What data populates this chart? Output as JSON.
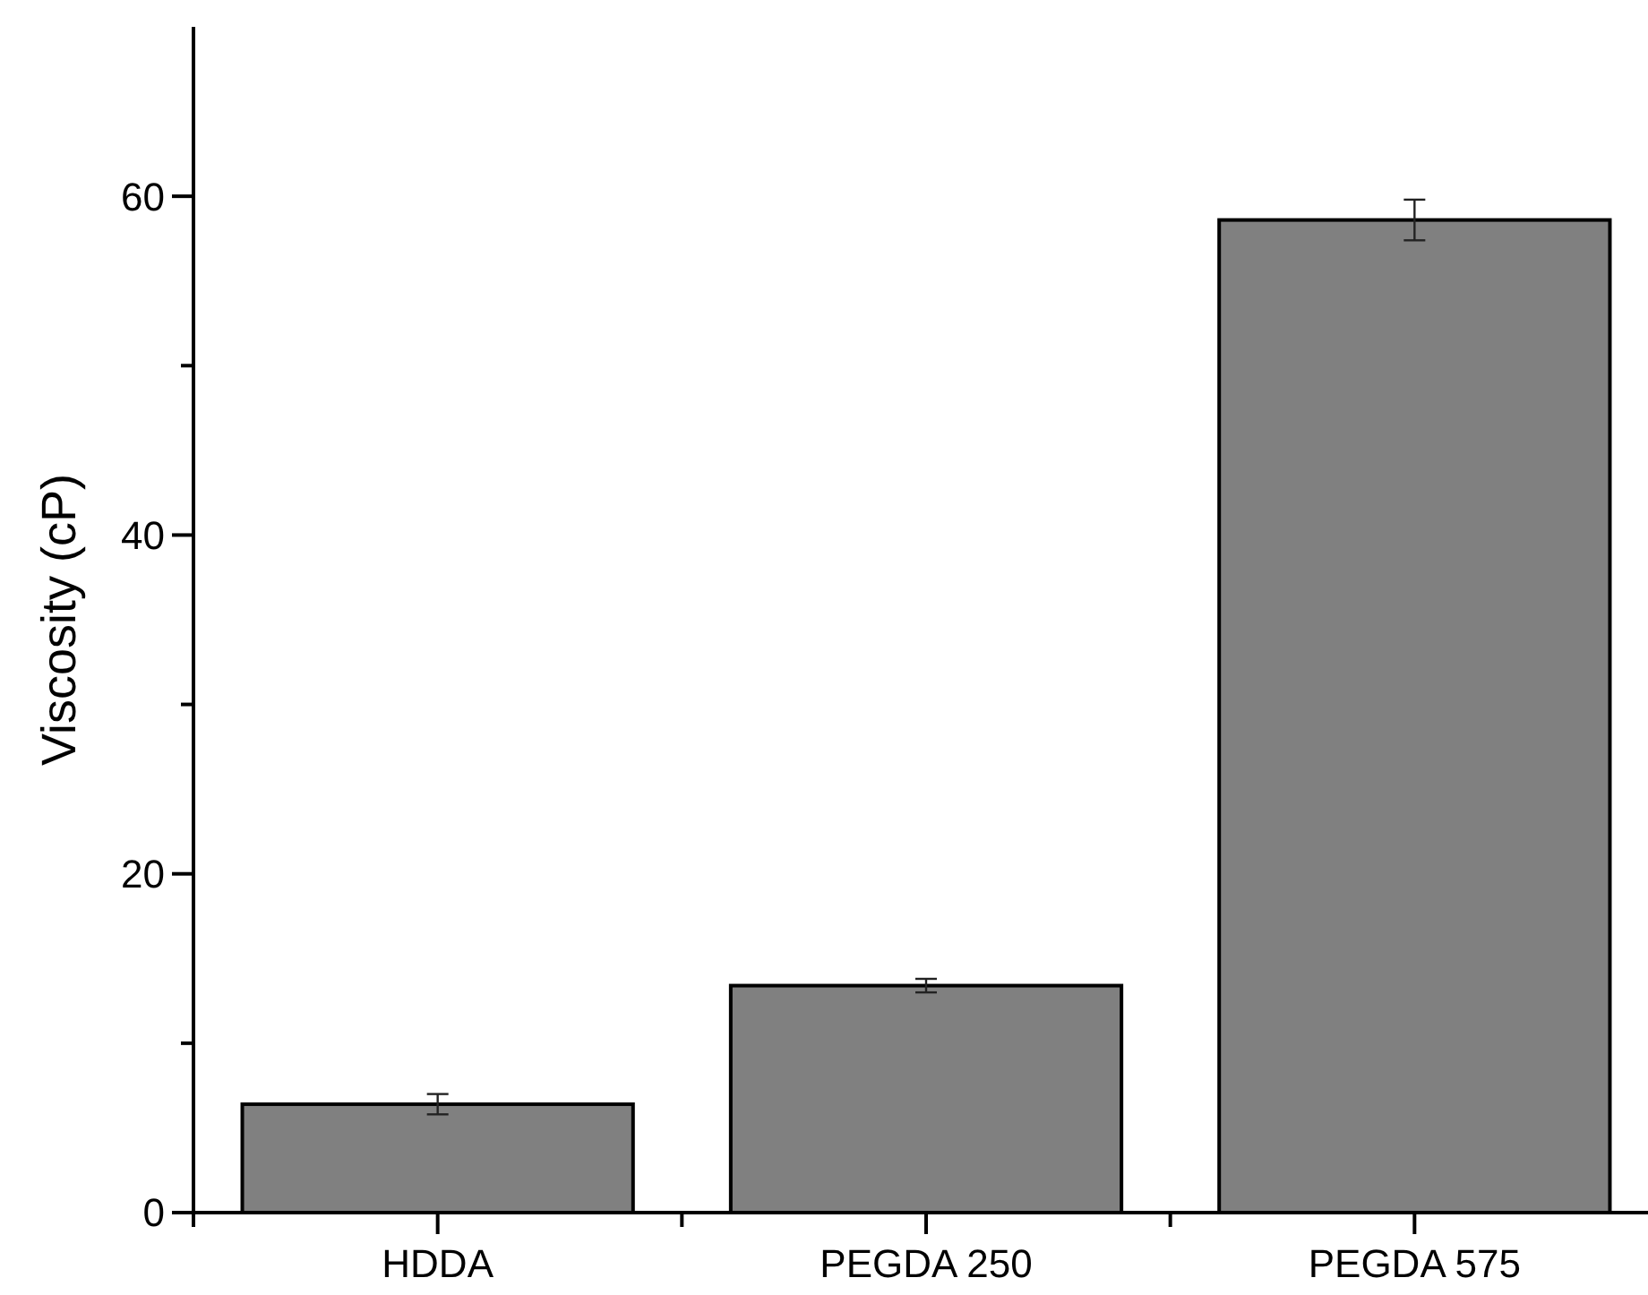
{
  "chart_data": {
    "type": "bar",
    "ylabel": "Viscosity (cP)",
    "categories": [
      "HDDA",
      "PEGDA 250",
      "PEGDA 575"
    ],
    "values": [
      6.4,
      13.4,
      58.6
    ],
    "errors": [
      0.6,
      0.4,
      1.2
    ],
    "color": "#808080",
    "ylim": [
      0,
      70
    ],
    "yticks": [
      0,
      {
        "value": 10,
        "label": null
      },
      20,
      {
        "value": 30,
        "label": null
      },
      40,
      {
        "value": 50,
        "label": null
      },
      60
    ],
    "grid": false
  }
}
